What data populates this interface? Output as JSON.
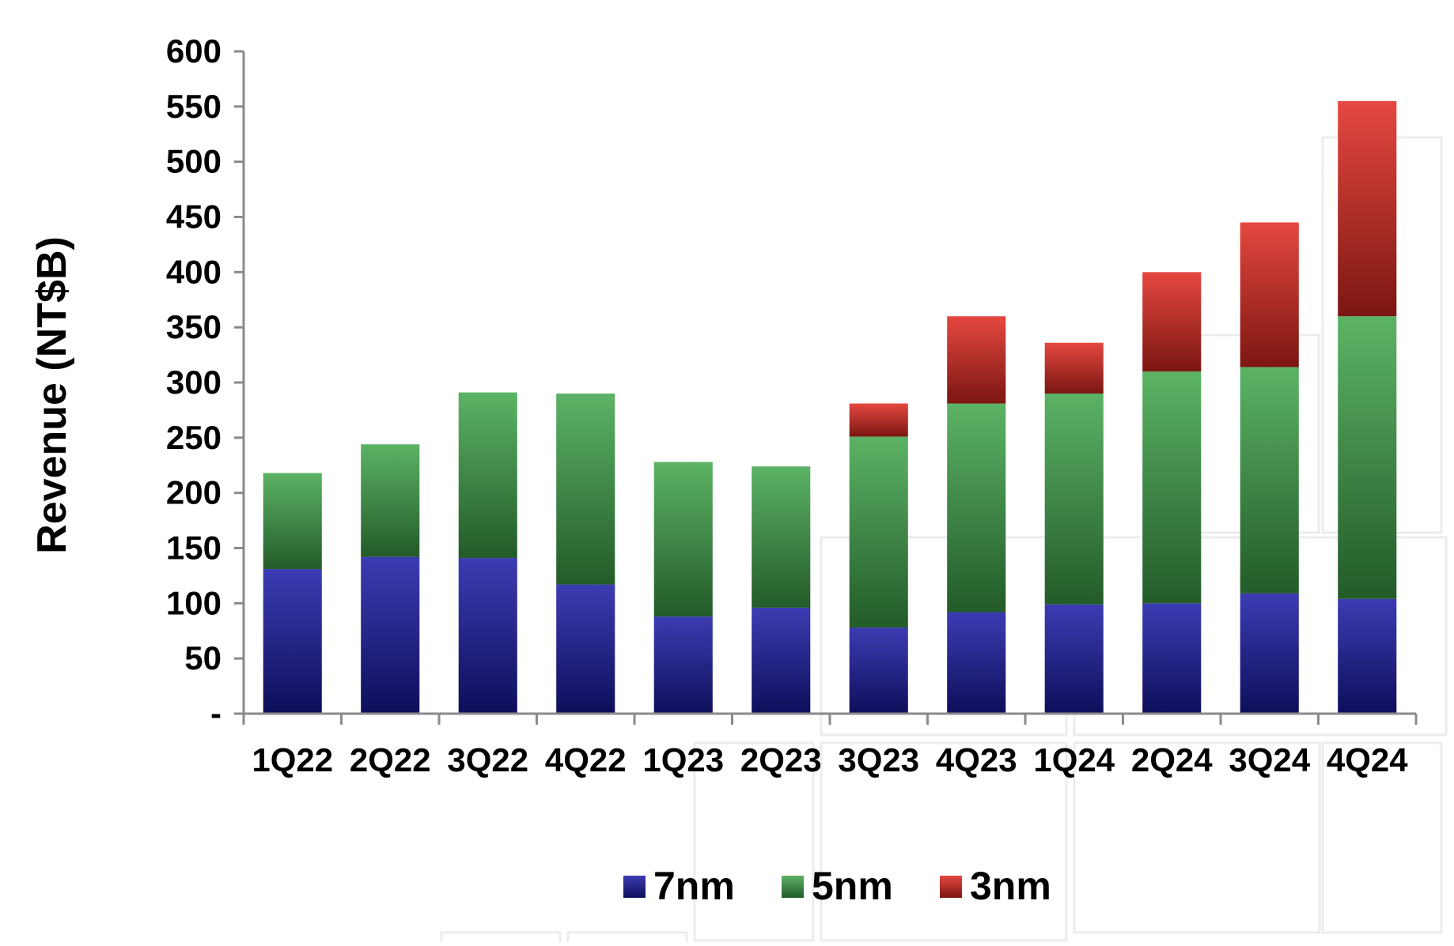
{
  "chart_data": {
    "type": "bar",
    "stacked": true,
    "ylabel": "Revenue (NT$B)",
    "xlabel": "",
    "ylim": [
      0,
      600
    ],
    "ytick_step": 50,
    "ytick_labels": [
      "-",
      "50",
      "100",
      "150",
      "200",
      "250",
      "300",
      "350",
      "400",
      "450",
      "500",
      "550",
      "600"
    ],
    "categories": [
      "1Q22",
      "2Q22",
      "3Q22",
      "4Q22",
      "1Q23",
      "2Q23",
      "3Q23",
      "4Q23",
      "1Q24",
      "2Q24",
      "3Q24",
      "4Q24"
    ],
    "series": [
      {
        "name": "7nm",
        "color": "#1a1aa6",
        "values": [
          131,
          142,
          141,
          117,
          88,
          96,
          78,
          92,
          99,
          100,
          109,
          104
        ]
      },
      {
        "name": "5nm",
        "color": "#3fa64a",
        "values": [
          87,
          102,
          150,
          173,
          140,
          128,
          173,
          189,
          191,
          210,
          205,
          256
        ]
      },
      {
        "name": "3nm",
        "color": "#e0281e",
        "values": [
          0,
          0,
          0,
          0,
          0,
          0,
          30,
          79,
          46,
          90,
          131,
          195
        ]
      }
    ],
    "grid": false,
    "legend_position": "bottom-center"
  }
}
